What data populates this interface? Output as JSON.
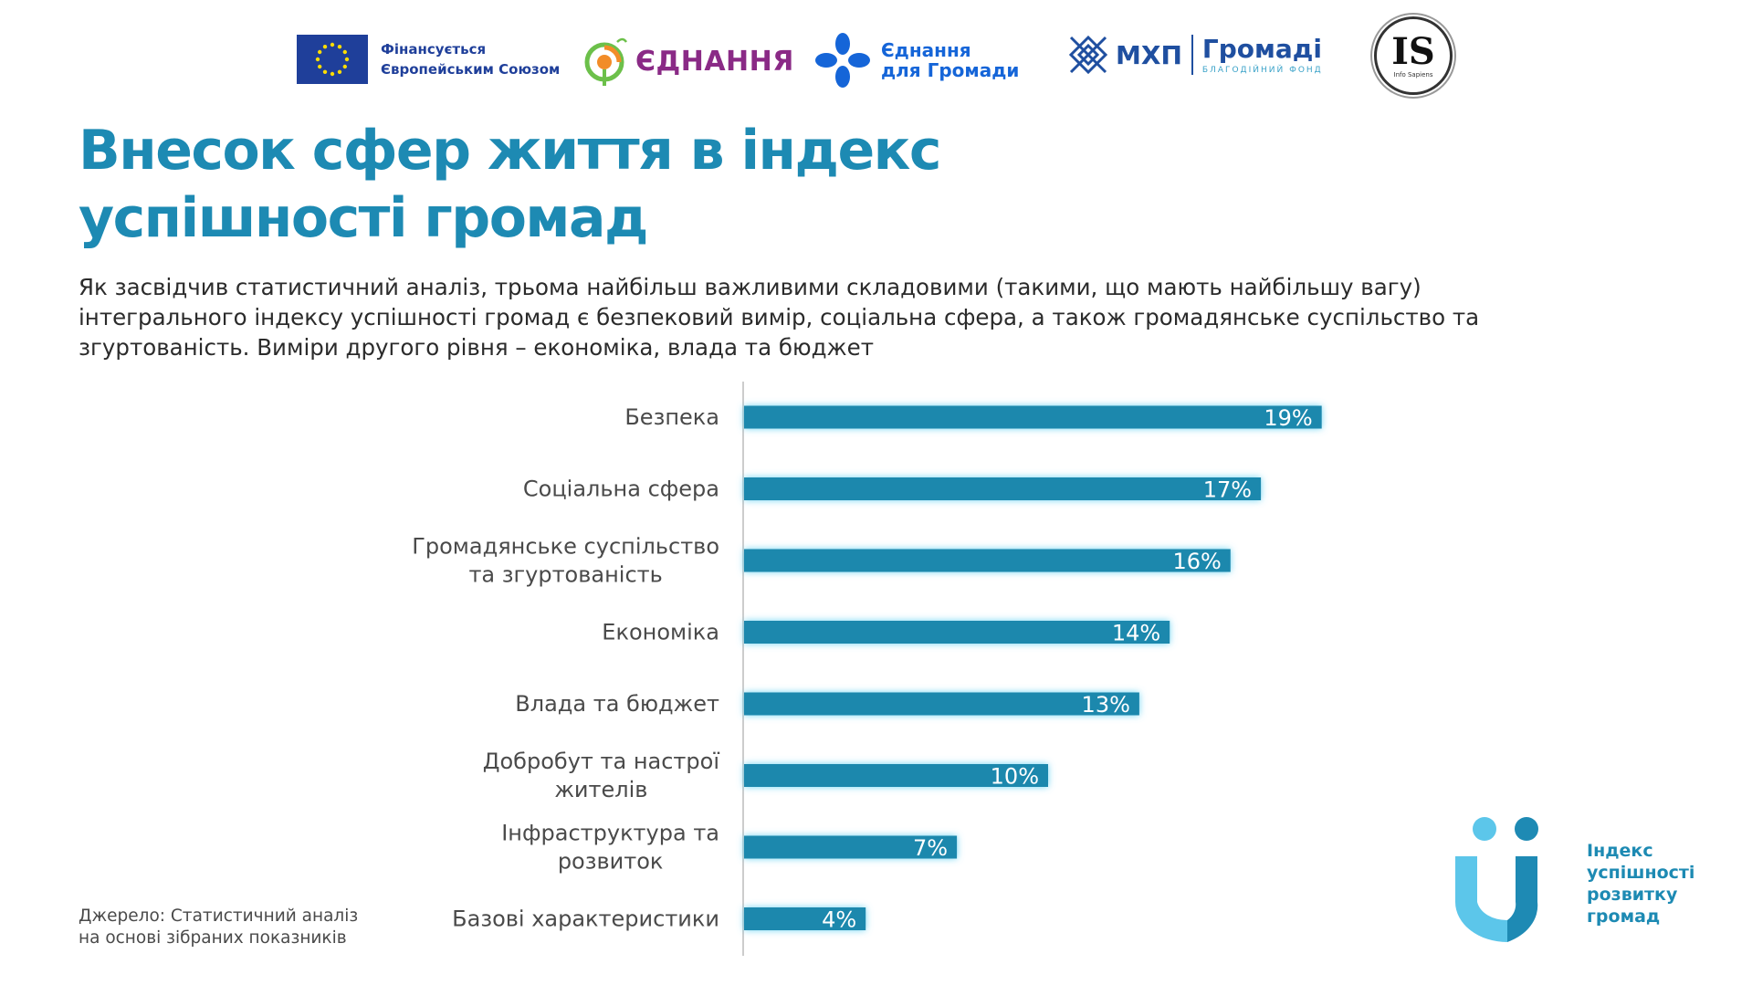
{
  "header": {
    "logos": {
      "eu_text_line1": "Фінансується",
      "eu_text_line2": "Європейським Союзом",
      "ednannia": "ЄДНАННЯ",
      "ednannia_hromady_line1": "Єднання",
      "ednannia_hromady_line2": "для Громади",
      "mhp": "МХП",
      "hromadi": "Громаді",
      "mhp_fund": "БЛАГОДІЙНИЙ ФОНД",
      "info_sapiens_letters": "IS",
      "info_sapiens_name": "Info Sapiens"
    }
  },
  "title_line1": "Внесок сфер життя в індекс",
  "title_line2": "успішності громад",
  "subtitle": "Як засвідчив статистичний аналіз, трьома найбільш важливими складовими (такими, що мають найбільшу вагу) інтегрального індексу успішності громад є безпековий вимір, соціальна сфера, а також громадянське суспільство та згуртованість. Виміри другого рівня – економіка, влада та бюджет",
  "chart_data": {
    "type": "bar",
    "orientation": "horizontal",
    "categories": [
      [
        "Безпека"
      ],
      [
        "Соціальна сфера"
      ],
      [
        "Громадянське суспільство",
        "та згуртованість"
      ],
      [
        "Економіка"
      ],
      [
        "Влада та бюджет"
      ],
      [
        "Добробут та настрої",
        "жителів"
      ],
      [
        "Інфраструктура та",
        "розвиток"
      ],
      [
        "Базові характеристики"
      ]
    ],
    "values": [
      19,
      17,
      16,
      14,
      13,
      10,
      7,
      4
    ],
    "value_labels": [
      "19%",
      "17%",
      "16%",
      "14%",
      "13%",
      "10%",
      "7%",
      "4%"
    ],
    "unit": "%",
    "xlim": [
      0,
      20
    ],
    "grid": false,
    "bar_color": "#1b88ad"
  },
  "footer": {
    "source_line1": "Джерело: Статистичний аналіз",
    "source_line2": "на основі зібраних показників",
    "brand_line1": "Індекс",
    "brand_line2": "успішності",
    "brand_line3": "розвитку",
    "brand_line4": "громад"
  },
  "colors": {
    "accent": "#1d8ab3",
    "bar": "#1b88ad",
    "bar_glow": "#5fd0f2",
    "brand_light": "#5cc6ea",
    "brand_dark": "#1e8ab4"
  }
}
